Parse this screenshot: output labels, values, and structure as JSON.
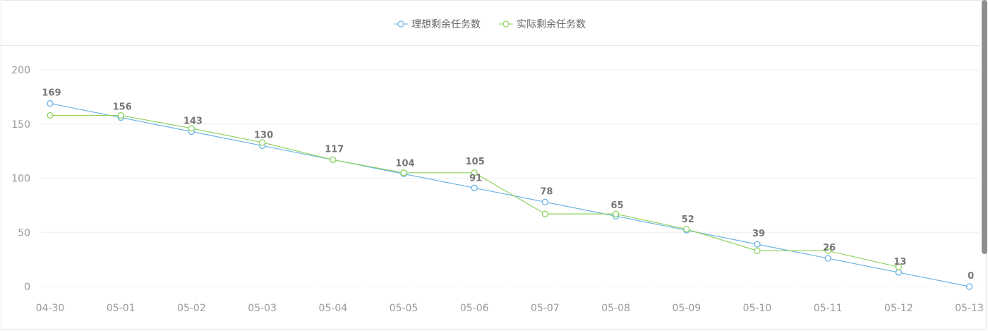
{
  "chart_data": {
    "type": "line",
    "categories": [
      "04-30",
      "05-01",
      "05-02",
      "05-03",
      "05-04",
      "05-05",
      "05-06",
      "05-07",
      "05-08",
      "05-09",
      "05-10",
      "05-11",
      "05-12",
      "05-13"
    ],
    "series": [
      {
        "name": "理想剩余任务数",
        "color": "#6cb4e6",
        "values": [
          169,
          156,
          143,
          130,
          117,
          104,
          91,
          78,
          65,
          52,
          39,
          26,
          13,
          0
        ]
      },
      {
        "name": "实际剩余任务数",
        "color": "#8fd35f",
        "values": [
          158,
          158,
          146,
          133,
          117,
          105,
          105,
          67,
          67,
          53,
          33,
          33,
          18,
          null
        ]
      }
    ],
    "data_labels": [
      169,
      156,
      143,
      130,
      117,
      104,
      105,
      91,
      78,
      65,
      52,
      39,
      26,
      13,
      0
    ],
    "ylim": [
      0,
      200
    ],
    "yticks": [
      0,
      50,
      100,
      150,
      200
    ],
    "grid": true,
    "legend_position": "top-center"
  }
}
